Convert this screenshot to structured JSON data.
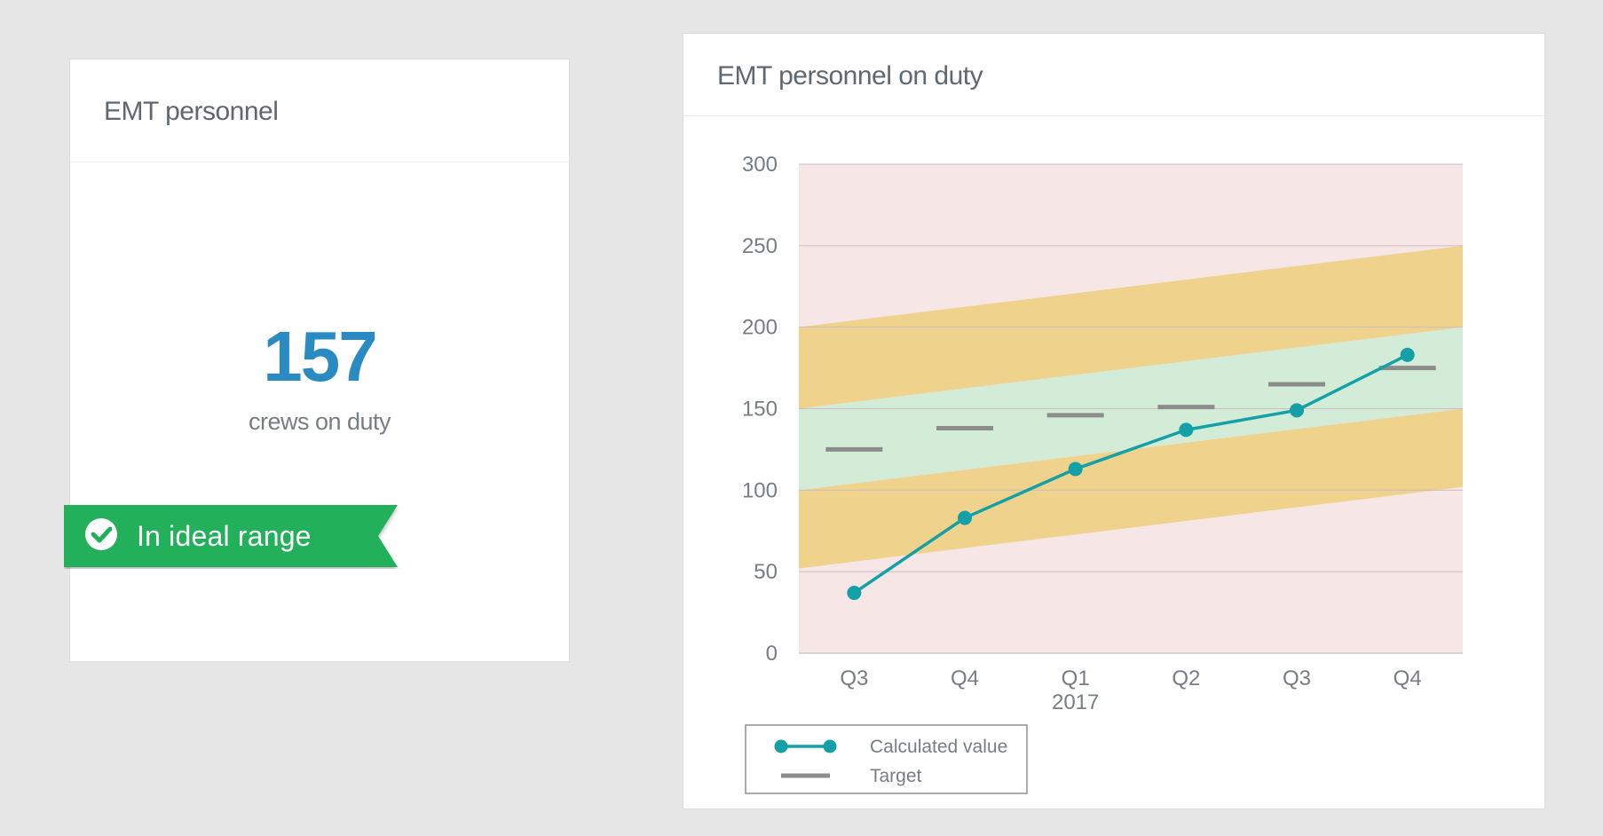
{
  "kpi": {
    "title": "EMT personnel",
    "value": "157",
    "caption": "crews on duty",
    "status": "In ideal range"
  },
  "colors": {
    "accent": "#2a8bc2",
    "status_green": "#21b15a",
    "line": "#13a0a6",
    "target": "#8c8c8c",
    "band_red": "#f7e6e6",
    "band_amber": "#efd28c",
    "band_green": "#d3ecd7"
  },
  "chart_data": {
    "type": "line",
    "title": "EMT personnel on duty",
    "categories": [
      "Q3",
      "Q4",
      "Q1",
      "Q2",
      "Q3",
      "Q4"
    ],
    "category_sublabels": [
      "",
      "",
      "2017",
      "",
      "",
      ""
    ],
    "ylim": [
      0,
      300
    ],
    "yticks": [
      0,
      50,
      100,
      150,
      200,
      250,
      300
    ],
    "grid": true,
    "legend_position": "bottom-left",
    "series": [
      {
        "name": "Calculated value",
        "values": [
          37,
          83,
          113,
          137,
          149,
          183
        ]
      },
      {
        "name": "Target",
        "values": [
          125,
          138,
          146,
          151,
          165,
          175
        ]
      }
    ],
    "bands": {
      "ideal_lower": [
        100,
        150
      ],
      "ideal_upper": [
        150,
        200
      ],
      "warning_lower": [
        52,
        102
      ],
      "warning_upper": [
        200,
        250
      ]
    }
  }
}
